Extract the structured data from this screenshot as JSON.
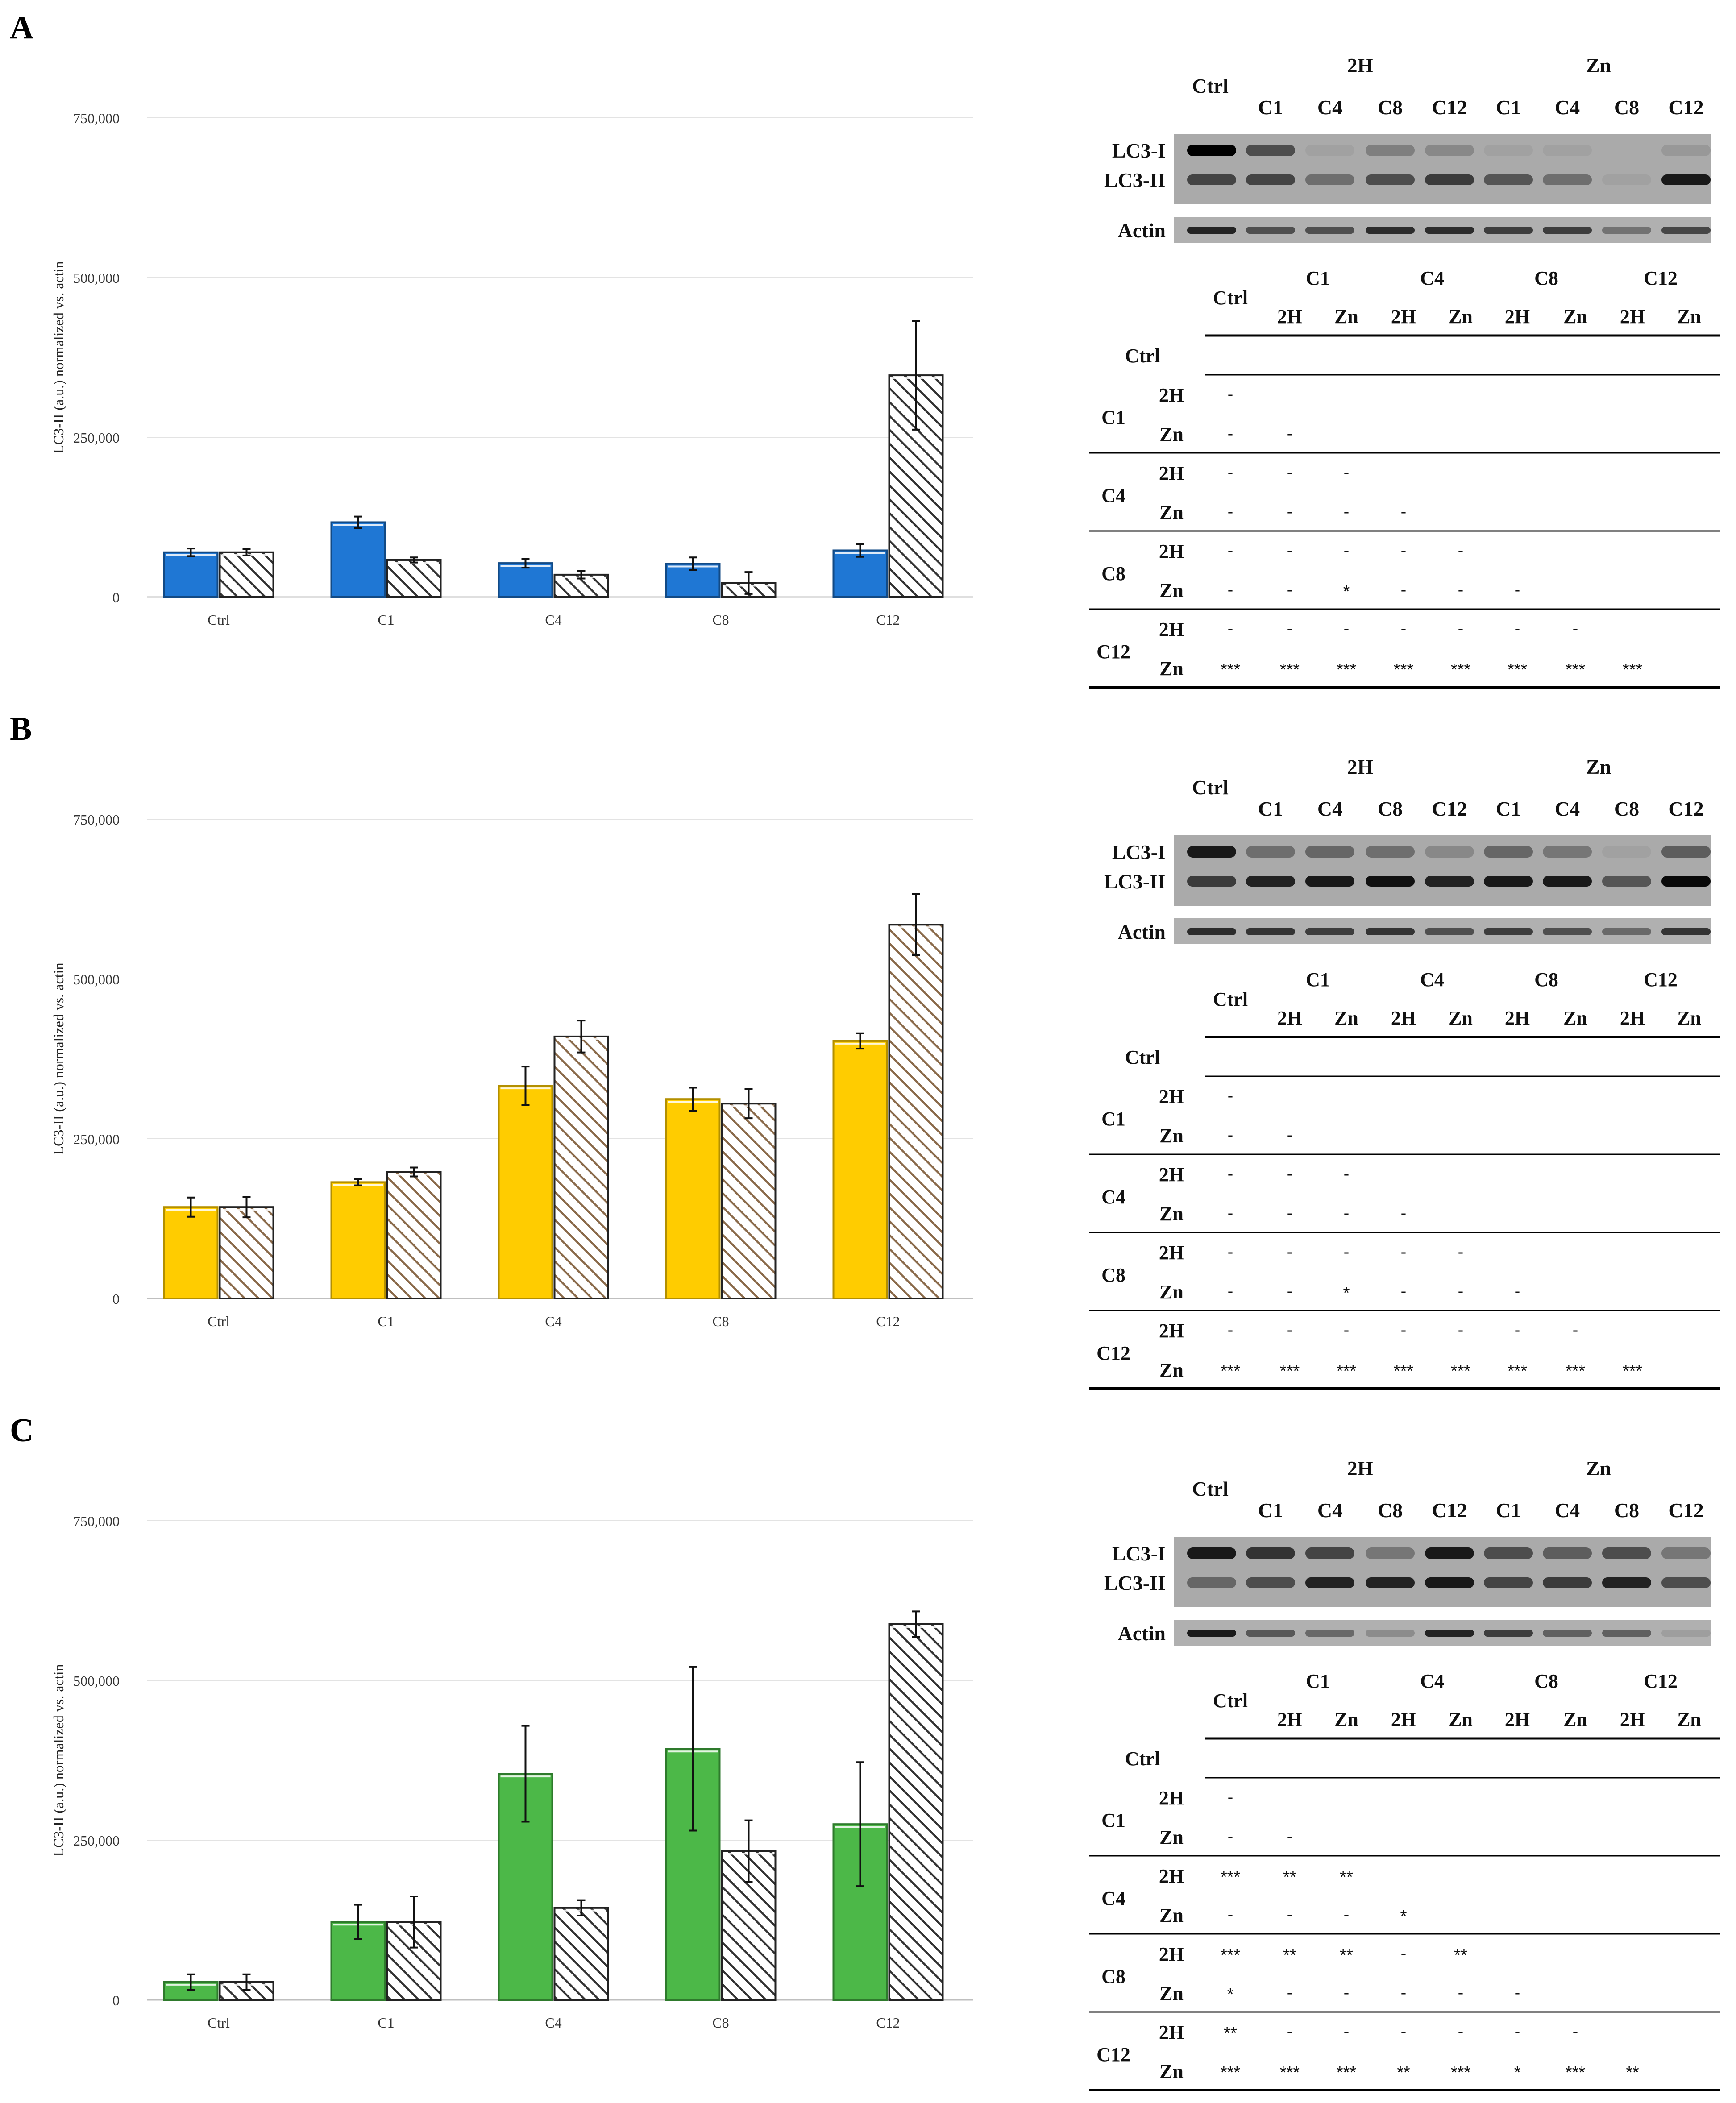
{
  "figure": {
    "colors": {
      "A": {
        "fill": "#1f77d4",
        "edge": "#124a85",
        "hatch": "#333333"
      },
      "B": {
        "fill": "#ffcc00",
        "edge": "#b38f00",
        "hatch": "#8a6a4a"
      },
      "C": {
        "fill": "#4cb848",
        "edge": "#2e7a2c",
        "hatch": "#333333"
      }
    },
    "panels": [
      {
        "label": "A",
        "colorKey": "A",
        "chart_data": {
          "type": "bar",
          "ylabel": "LC3-II (a.u.) normalized vs. actin",
          "ylim": [
            0,
            750000
          ],
          "yticks": [
            "0",
            "250,000",
            "500,000",
            "750,000"
          ],
          "categories": [
            "Ctrl",
            "C1",
            "C4",
            "C8",
            "C12"
          ],
          "series": [
            {
              "name": "2H",
              "values": [
                70000,
                117000,
                53000,
                52000,
                73000
              ],
              "errors": [
                6000,
                9000,
                7000,
                10000,
                10000
              ]
            },
            {
              "name": "Zn",
              "values": [
                70000,
                58000,
                35000,
                22000,
                347000
              ],
              "errors": [
                5000,
                4000,
                6000,
                17000,
                85000
              ]
            }
          ]
        },
        "blot": {
          "ctrl": "Ctrl",
          "groups": [
            "2H",
            "Zn"
          ],
          "lanes": [
            "C1",
            "C4",
            "C8",
            "C12",
            "C1",
            "C4",
            "C8",
            "C12"
          ],
          "rows": [
            "LC3-I",
            "LC3-II",
            "Actin"
          ],
          "lc3i": [
            1.0,
            0.55,
            0.05,
            0.25,
            0.2,
            0.05,
            0.05,
            0.0,
            0.1
          ],
          "lc3ii": [
            0.6,
            0.6,
            0.35,
            0.55,
            0.65,
            0.5,
            0.35,
            0.05,
            0.85
          ],
          "actin": [
            0.8,
            0.55,
            0.55,
            0.75,
            0.75,
            0.65,
            0.65,
            0.35,
            0.6
          ]
        },
        "stats": {
          "ctrl": "Ctrl",
          "groups": [
            "C1",
            "C4",
            "C8",
            "C12"
          ],
          "sub": [
            "2H",
            "Zn"
          ],
          "rowGroups": [
            {
              "label": "C1",
              "rows": [
                {
                  "sub": "2H",
                  "cells": [
                    "-"
                  ]
                },
                {
                  "sub": "Zn",
                  "cells": [
                    "-",
                    "-"
                  ]
                }
              ]
            },
            {
              "label": "C4",
              "rows": [
                {
                  "sub": "2H",
                  "cells": [
                    "-",
                    "-",
                    "-"
                  ]
                },
                {
                  "sub": "Zn",
                  "cells": [
                    "-",
                    "-",
                    "-",
                    "-"
                  ]
                }
              ]
            },
            {
              "label": "C8",
              "rows": [
                {
                  "sub": "2H",
                  "cells": [
                    "-",
                    "-",
                    "-",
                    "-",
                    "-"
                  ]
                },
                {
                  "sub": "Zn",
                  "cells": [
                    "-",
                    "-",
                    "*",
                    "-",
                    "-",
                    "-"
                  ]
                }
              ]
            },
            {
              "label": "C12",
              "rows": [
                {
                  "sub": "2H",
                  "cells": [
                    "-",
                    "-",
                    "-",
                    "-",
                    "-",
                    "-",
                    "-"
                  ]
                },
                {
                  "sub": "Zn",
                  "cells": [
                    "***",
                    "***",
                    "***",
                    "***",
                    "***",
                    "***",
                    "***",
                    "***"
                  ]
                }
              ]
            }
          ]
        }
      },
      {
        "label": "B",
        "colorKey": "B",
        "chart_data": {
          "type": "bar",
          "ylabel": "LC3-II (a.u.) normalized vs. actin",
          "ylim": [
            0,
            750000
          ],
          "yticks": [
            "0",
            "250,000",
            "500,000",
            "750,000"
          ],
          "categories": [
            "Ctrl",
            "C1",
            "C4",
            "C8",
            "C12"
          ],
          "series": [
            {
              "name": "2H",
              "values": [
                143000,
                182000,
                333000,
                312000,
                403000
              ],
              "errors": [
                15000,
                5000,
                30000,
                18000,
                12000
              ]
            },
            {
              "name": "Zn",
              "values": [
                143000,
                198000,
                410000,
                305000,
                585000
              ],
              "errors": [
                16000,
                7000,
                25000,
                23000,
                48000
              ]
            }
          ]
        },
        "blot": {
          "ctrl": "Ctrl",
          "groups": [
            "2H",
            "Zn"
          ],
          "lanes": [
            "C1",
            "C4",
            "C8",
            "C12",
            "C1",
            "C4",
            "C8",
            "C12"
          ],
          "rows": [
            "LC3-I",
            "LC3-II",
            "Actin"
          ],
          "lc3i": [
            0.85,
            0.35,
            0.4,
            0.35,
            0.2,
            0.4,
            0.3,
            0.05,
            0.45
          ],
          "lc3ii": [
            0.65,
            0.8,
            0.85,
            0.9,
            0.8,
            0.85,
            0.85,
            0.5,
            0.95
          ],
          "actin": [
            0.75,
            0.7,
            0.65,
            0.7,
            0.55,
            0.65,
            0.55,
            0.4,
            0.7
          ]
        },
        "stats": {
          "ctrl": "Ctrl",
          "groups": [
            "C1",
            "C4",
            "C8",
            "C12"
          ],
          "sub": [
            "2H",
            "Zn"
          ],
          "rowGroups": [
            {
              "label": "C1",
              "rows": [
                {
                  "sub": "2H",
                  "cells": [
                    "-"
                  ]
                },
                {
                  "sub": "Zn",
                  "cells": [
                    "-",
                    "-"
                  ]
                }
              ]
            },
            {
              "label": "C4",
              "rows": [
                {
                  "sub": "2H",
                  "cells": [
                    "-",
                    "-",
                    "-"
                  ]
                },
                {
                  "sub": "Zn",
                  "cells": [
                    "-",
                    "-",
                    "-",
                    "-"
                  ]
                }
              ]
            },
            {
              "label": "C8",
              "rows": [
                {
                  "sub": "2H",
                  "cells": [
                    "-",
                    "-",
                    "-",
                    "-",
                    "-"
                  ]
                },
                {
                  "sub": "Zn",
                  "cells": [
                    "-",
                    "-",
                    "*",
                    "-",
                    "-",
                    "-"
                  ]
                }
              ]
            },
            {
              "label": "C12",
              "rows": [
                {
                  "sub": "2H",
                  "cells": [
                    "-",
                    "-",
                    "-",
                    "-",
                    "-",
                    "-",
                    "-"
                  ]
                },
                {
                  "sub": "Zn",
                  "cells": [
                    "***",
                    "***",
                    "***",
                    "***",
                    "***",
                    "***",
                    "***",
                    "***"
                  ]
                }
              ]
            }
          ]
        }
      },
      {
        "label": "C",
        "colorKey": "C",
        "chart_data": {
          "type": "bar",
          "ylabel": "LC3-II (a.u.) normalized vs. actin",
          "ylim": [
            0,
            750000
          ],
          "yticks": [
            "0",
            "250,000",
            "500,000",
            "750,000"
          ],
          "categories": [
            "Ctrl",
            "C1",
            "C4",
            "C8",
            "C12"
          ],
          "series": [
            {
              "name": "2H",
              "values": [
                28000,
                122000,
                354000,
                393000,
                275000
              ],
              "errors": [
                12000,
                27000,
                75000,
                128000,
                97000
              ]
            },
            {
              "name": "Zn",
              "values": [
                28000,
                122000,
                144000,
                233000,
                588000
              ],
              "errors": [
                12000,
                40000,
                12000,
                48000,
                20000
              ]
            }
          ]
        },
        "blot": {
          "ctrl": "Ctrl",
          "groups": [
            "2H",
            "Zn"
          ],
          "lanes": [
            "C1",
            "C4",
            "C8",
            "C12",
            "C1",
            "C4",
            "C8",
            "C12"
          ],
          "rows": [
            "LC3-I",
            "LC3-II",
            "Actin"
          ],
          "lc3i": [
            0.85,
            0.7,
            0.6,
            0.3,
            0.85,
            0.55,
            0.45,
            0.55,
            0.3
          ],
          "lc3ii": [
            0.4,
            0.55,
            0.8,
            0.8,
            0.85,
            0.6,
            0.65,
            0.8,
            0.55
          ],
          "actin": [
            0.85,
            0.5,
            0.4,
            0.2,
            0.8,
            0.65,
            0.45,
            0.45,
            0.1
          ]
        },
        "stats": {
          "ctrl": "Ctrl",
          "groups": [
            "C1",
            "C4",
            "C8",
            "C12"
          ],
          "sub": [
            "2H",
            "Zn"
          ],
          "rowGroups": [
            {
              "label": "C1",
              "rows": [
                {
                  "sub": "2H",
                  "cells": [
                    "-"
                  ]
                },
                {
                  "sub": "Zn",
                  "cells": [
                    "-",
                    "-"
                  ]
                }
              ]
            },
            {
              "label": "C4",
              "rows": [
                {
                  "sub": "2H",
                  "cells": [
                    "***",
                    "**",
                    "**"
                  ]
                },
                {
                  "sub": "Zn",
                  "cells": [
                    "-",
                    "-",
                    "-",
                    "*"
                  ]
                }
              ]
            },
            {
              "label": "C8",
              "rows": [
                {
                  "sub": "2H",
                  "cells": [
                    "***",
                    "**",
                    "**",
                    "-",
                    "**"
                  ]
                },
                {
                  "sub": "Zn",
                  "cells": [
                    "*",
                    "-",
                    "-",
                    "-",
                    "-",
                    "-"
                  ]
                }
              ]
            },
            {
              "label": "C12",
              "rows": [
                {
                  "sub": "2H",
                  "cells": [
                    "**",
                    "-",
                    "-",
                    "-",
                    "-",
                    "-",
                    "-"
                  ]
                },
                {
                  "sub": "Zn",
                  "cells": [
                    "***",
                    "***",
                    "***",
                    "**",
                    "***",
                    "*",
                    "***",
                    "**"
                  ]
                }
              ]
            }
          ]
        }
      }
    ]
  }
}
